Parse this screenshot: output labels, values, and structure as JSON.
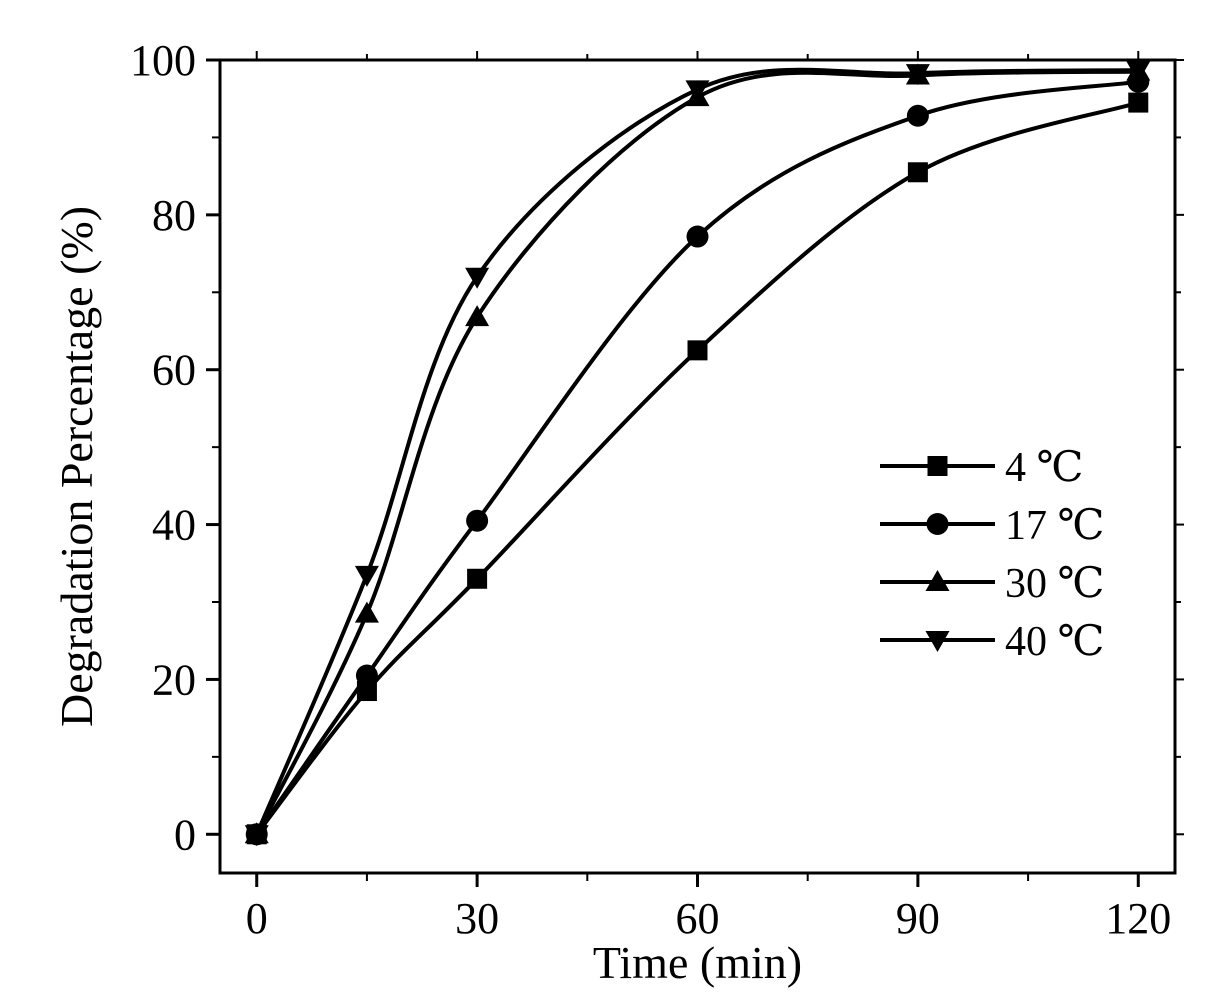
{
  "chart_data": {
    "type": "line",
    "title": "",
    "xlabel": "Time (min)",
    "ylabel": "Degradation Percentage (%)",
    "xlim": [
      -5,
      125
    ],
    "ylim": [
      -5,
      100
    ],
    "xticks": [
      0,
      30,
      60,
      90,
      120
    ],
    "xtick_labels": [
      "0",
      "30",
      "60",
      "90",
      "120"
    ],
    "yticks": [
      0,
      20,
      40,
      60,
      80,
      100
    ],
    "ytick_labels": [
      "0",
      "20",
      "40",
      "60",
      "80",
      "100"
    ],
    "legend_position": "right",
    "x": [
      0,
      15,
      30,
      60,
      90,
      120
    ],
    "series": [
      {
        "name": "4 ℃",
        "marker": "square",
        "values": [
          0,
          18.5,
          33,
          62.5,
          85.5,
          94.5
        ]
      },
      {
        "name": "17 ℃",
        "marker": "circle",
        "values": [
          0,
          20.5,
          40.5,
          77.2,
          92.8,
          97.2
        ]
      },
      {
        "name": "30 ℃",
        "marker": "triangle-up",
        "values": [
          0,
          28.5,
          66.8,
          95.2,
          98,
          98.5
        ]
      },
      {
        "name": "40 ℃",
        "marker": "triangle-down",
        "values": [
          0,
          33.5,
          72,
          96.2,
          98.3,
          98.7
        ]
      }
    ]
  }
}
